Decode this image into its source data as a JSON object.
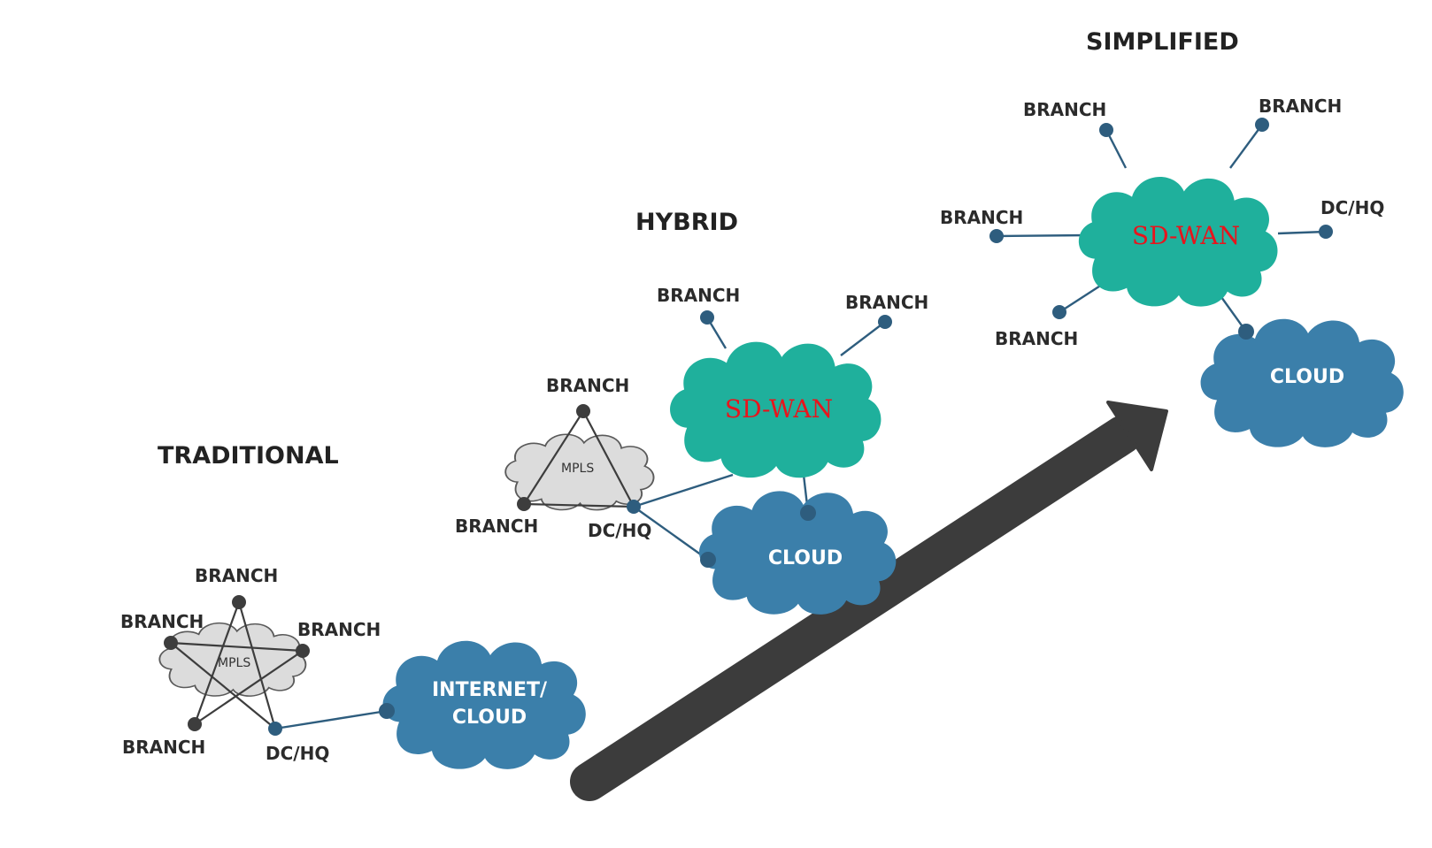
{
  "colors": {
    "sdwan_cloud": "#1fb09c",
    "cloud": "#3b7faa",
    "mpls_cloud": "#dcdcdc",
    "node_dark": "#3d3d3d",
    "node_blue": "#2e5d7e",
    "arrow": "#3c3c3c",
    "sdwan_text": "#e8141c"
  },
  "sections": {
    "traditional": {
      "title": "TRADITIONAL",
      "mpls_label": "MPLS",
      "cloud_line1": "INTERNET/",
      "cloud_line2": "CLOUD",
      "branch_top": "BRANCH",
      "branch_left": "BRANCH",
      "branch_right": "BRANCH",
      "branch_bottom": "BRANCH",
      "dchq": "DC/HQ"
    },
    "hybrid": {
      "title": "HYBRID",
      "mpls_label": "MPLS",
      "sdwan_label": "SD-WAN",
      "cloud_label": "CLOUD",
      "mpls_branch_top": "BRANCH",
      "mpls_branch_bottom": "BRANCH",
      "dchq": "DC/HQ",
      "sdwan_branch_left": "BRANCH",
      "sdwan_branch_right": "BRANCH"
    },
    "simplified": {
      "title": "SIMPLIFIED",
      "sdwan_label": "SD-WAN",
      "cloud_label": "CLOUD",
      "branch_top_left": "BRANCH",
      "branch_top_right": "BRANCH",
      "branch_left": "BRANCH",
      "branch_bottom_left": "BRANCH",
      "dchq": "DC/HQ"
    }
  },
  "icons": {
    "progress_arrow": "arrow-up-right-icon"
  }
}
